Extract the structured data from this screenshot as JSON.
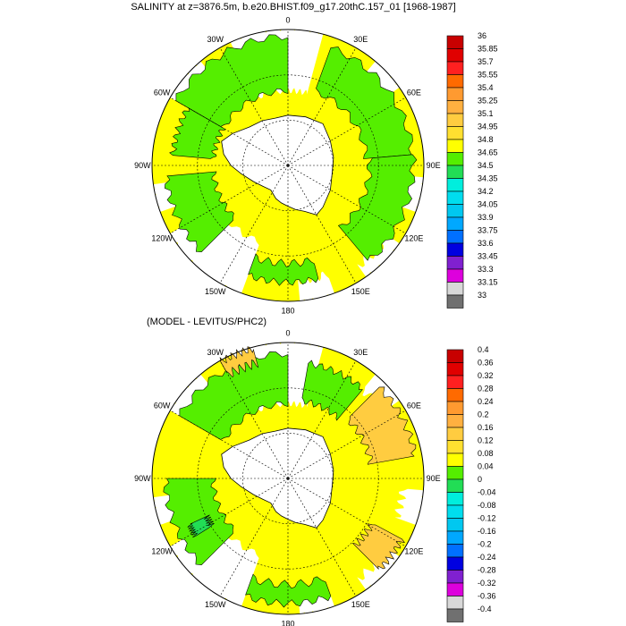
{
  "chart_data": [
    {
      "type": "heatmap",
      "projection": "south-polar-stereographic",
      "title": "SALINITY at z=3876.5m, b.e20.BHIST.f09_g17.20thC.157_01 [1968-1987]",
      "lon_labels": [
        "0",
        "30E",
        "60E",
        "90E",
        "120E",
        "150E",
        "180",
        "150W",
        "120W",
        "90W",
        "60W",
        "30W"
      ],
      "colorbar": {
        "levels": [
          "36",
          "35.85",
          "35.7",
          "35.55",
          "35.4",
          "35.25",
          "35.1",
          "34.95",
          "34.8",
          "34.65",
          "34.5",
          "34.35",
          "34.2",
          "34.05",
          "33.9",
          "33.75",
          "33.6",
          "33.45",
          "33.3",
          "33.15",
          "33"
        ],
        "colors": [
          "#c80000",
          "#e00000",
          "#ff2020",
          "#ff6a00",
          "#ff9a30",
          "#ffb040",
          "#ffcc40",
          "#ffe030",
          "#ffff00",
          "#55ee00",
          "#22dd55",
          "#00eedd",
          "#00ddee",
          "#00c8f0",
          "#00a8ff",
          "#0070ff",
          "#0000e0",
          "#8020d0",
          "#dd00dd",
          "#d8d8d8",
          "#707070"
        ]
      },
      "regions": [
        {
          "value_band": "34.8-34.95",
          "color": "#55ee00",
          "area": "Atlantic sector 0-30E"
        },
        {
          "value_band": "34.8-34.95",
          "color": "#55ee00",
          "area": "Weddell / Atlantic 30W"
        },
        {
          "value_band": "34.8-34.95",
          "color": "#55ee00",
          "area": "Indian sector 90E"
        },
        {
          "value_band": "34.8-34.95",
          "color": "#55ee00",
          "area": "Pacific sector 90W-120W"
        },
        {
          "value_band": "34.8-34.95",
          "color": "#55ee00",
          "area": "Ross sector 180"
        },
        {
          "value_band": "34.65-34.8",
          "color": "#ffff00",
          "area": "remaining ocean"
        }
      ]
    },
    {
      "type": "heatmap",
      "projection": "south-polar-stereographic",
      "title": "(MODEL - LEVITUS/PHC2)",
      "lon_labels": [
        "0",
        "30E",
        "60E",
        "90E",
        "120E",
        "150E",
        "180",
        "150W",
        "120W",
        "90W",
        "60W",
        "30W"
      ],
      "colorbar": {
        "levels": [
          "0.4",
          "0.36",
          "0.32",
          "0.28",
          "0.24",
          "0.2",
          "0.16",
          "0.12",
          "0.08",
          "0.04",
          "0",
          "-0.04",
          "-0.08",
          "-0.12",
          "-0.16",
          "-0.2",
          "-0.24",
          "-0.28",
          "-0.32",
          "-0.36",
          "-0.4"
        ],
        "colors": [
          "#c80000",
          "#e00000",
          "#ff2020",
          "#ff6a00",
          "#ff9a30",
          "#ffb040",
          "#ffcc40",
          "#ffe030",
          "#ffff00",
          "#55ee00",
          "#22dd55",
          "#00eedd",
          "#00ddee",
          "#00c8f0",
          "#00a8ff",
          "#0070ff",
          "#0000e0",
          "#8020d0",
          "#dd00dd",
          "#d8d8d8",
          "#707070"
        ]
      },
      "regions": [
        {
          "value_band": "0.04-0.08",
          "color": "#55ee00",
          "area": "Weddell / Atlantic"
        },
        {
          "value_band": "0.04-0.08",
          "color": "#55ee00",
          "area": "Pacific sector 90W-120W"
        },
        {
          "value_band": "0.04-0.08",
          "color": "#55ee00",
          "area": "Ross sector 180"
        },
        {
          "value_band": "0.16-0.2",
          "color": "#ffcc40",
          "area": "Indian sector 60E"
        },
        {
          "value_band": "0.16-0.2",
          "color": "#ffcc40",
          "area": "30W"
        },
        {
          "value_band": "0-0.04",
          "color": "#22dd55",
          "area": "Amundsen patch"
        },
        {
          "value_band": "0.08-0.12",
          "color": "#ffff00",
          "area": "remaining ocean"
        }
      ]
    }
  ]
}
